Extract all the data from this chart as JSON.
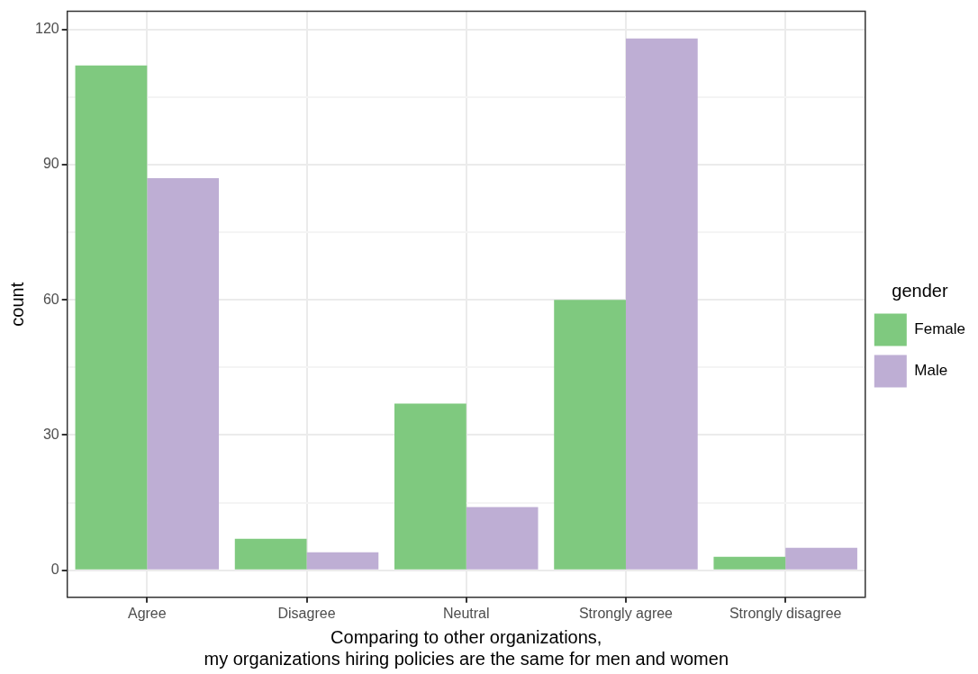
{
  "chart_data": {
    "type": "bar",
    "xlabel": "Comparing to other organizations,\nmy organizations hiring policies are the same for men and women",
    "ylabel": "count",
    "legend_title": "gender",
    "categories": [
      "Agree",
      "Disagree",
      "Neutral",
      "Strongly agree",
      "Strongly disagree"
    ],
    "series": [
      {
        "name": "Female",
        "color": "#7fc97f",
        "values": [
          112,
          7,
          37,
          60,
          3
        ]
      },
      {
        "name": "Male",
        "color": "#beaed4",
        "values": [
          87,
          4,
          14,
          118,
          5
        ]
      }
    ],
    "ylim": [
      -6,
      124
    ],
    "yticks": [
      0,
      {
        "value": 15,
        "label": null
      },
      30,
      {
        "value": 45,
        "label": null
      },
      60,
      {
        "value": 75,
        "label": null
      },
      90,
      {
        "value": 105,
        "label": null
      },
      120
    ],
    "grid": true,
    "legend": "right"
  }
}
